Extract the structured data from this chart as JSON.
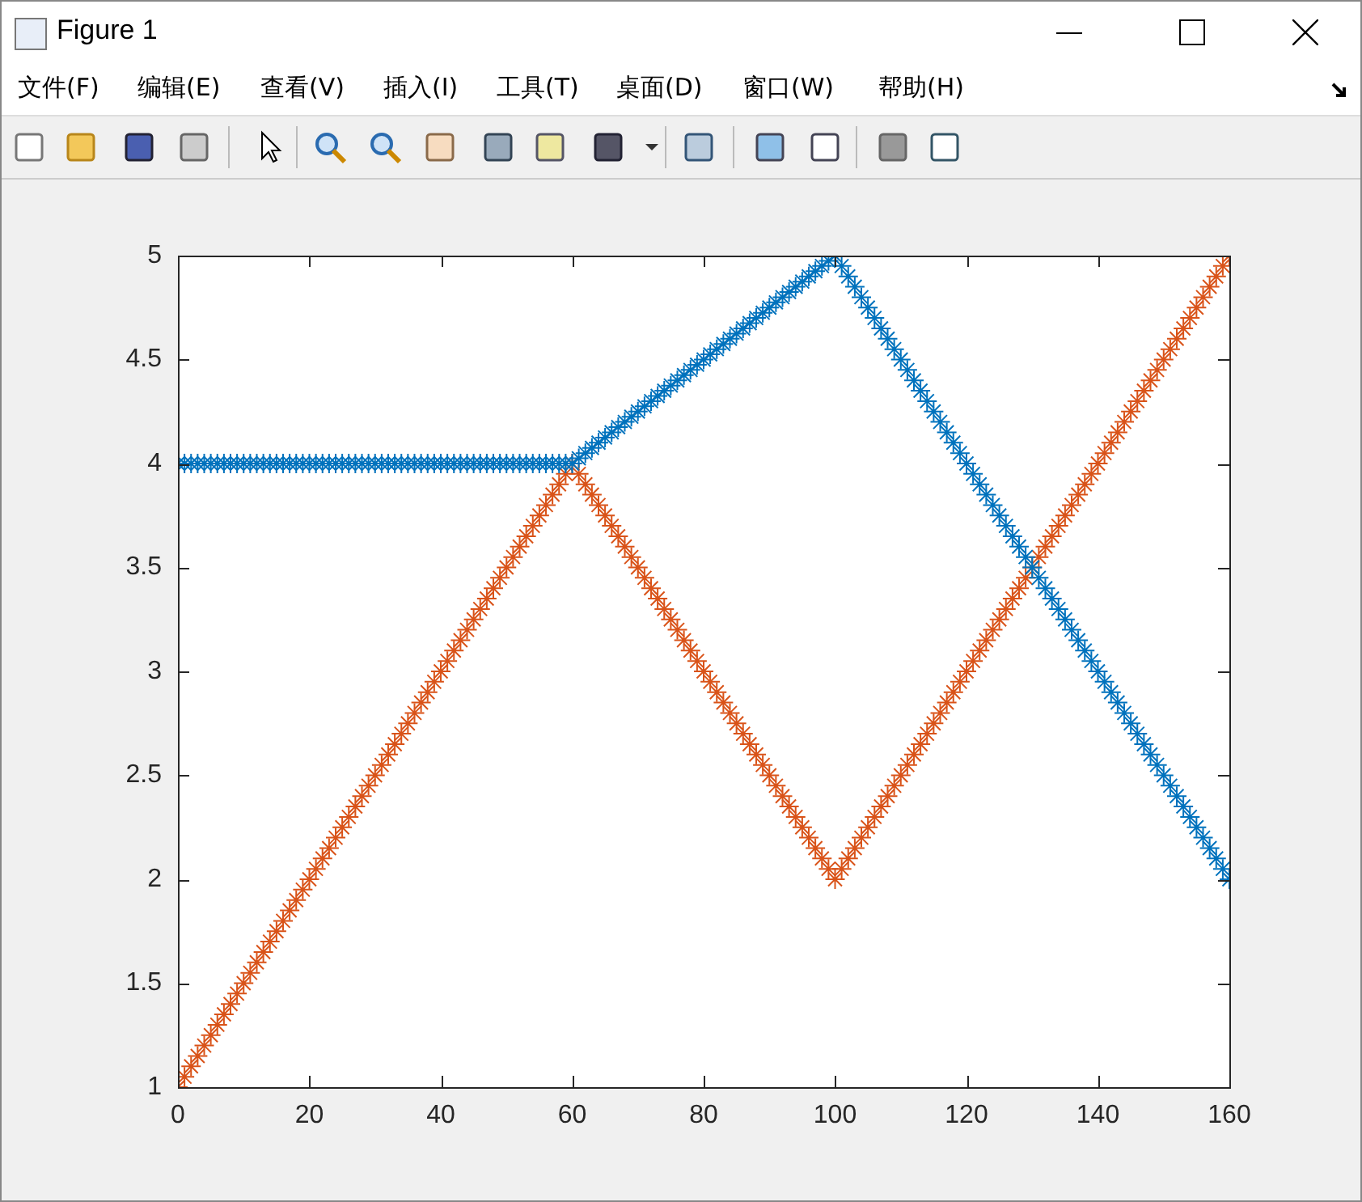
{
  "chart_data": {
    "type": "scatter",
    "annotations": [
      "Figure 1",
      "文件(F)",
      "编辑(E)",
      "查看(V)",
      "插入(I)",
      "工具(T)",
      "桌面(D)",
      "窗口(W)",
      "帮助(H)"
    ],
    "x": [
      0,
      1,
      2,
      3,
      4,
      5,
      6,
      7,
      8,
      9,
      10,
      11,
      12,
      13,
      14,
      15,
      16,
      17,
      18,
      19,
      20,
      21,
      22,
      23,
      24,
      25,
      26,
      27,
      28,
      29,
      30,
      31,
      32,
      33,
      34,
      35,
      36,
      37,
      38,
      39,
      40,
      41,
      42,
      43,
      44,
      45,
      46,
      47,
      48,
      49,
      50,
      51,
      52,
      53,
      54,
      55,
      56,
      57,
      58,
      59,
      60,
      61,
      62,
      63,
      64,
      65,
      66,
      67,
      68,
      69,
      70,
      71,
      72,
      73,
      74,
      75,
      76,
      77,
      78,
      79,
      80,
      81,
      82,
      83,
      84,
      85,
      86,
      87,
      88,
      89,
      90,
      91,
      92,
      93,
      94,
      95,
      96,
      97,
      98,
      99,
      100,
      101,
      102,
      103,
      104,
      105,
      106,
      107,
      108,
      109,
      110,
      111,
      112,
      113,
      114,
      115,
      116,
      117,
      118,
      119,
      120,
      121,
      122,
      123,
      124,
      125,
      126,
      127,
      128,
      129,
      130,
      131,
      132,
      133,
      134,
      135,
      136,
      137,
      138,
      139,
      140,
      141,
      142,
      143,
      144,
      145,
      146,
      147,
      148,
      149,
      150,
      151,
      152,
      153,
      154,
      155,
      156,
      157,
      158,
      159,
      160
    ],
    "series": [
      {
        "color": "#0072bd",
        "values": [
          4,
          4,
          4,
          4,
          4,
          4,
          4,
          4,
          4,
          4,
          4,
          4,
          4,
          4,
          4,
          4,
          4,
          4,
          4,
          4,
          4,
          4,
          4,
          4,
          4,
          4,
          4,
          4,
          4,
          4,
          4,
          4,
          4,
          4,
          4,
          4,
          4,
          4,
          4,
          4,
          4,
          4,
          4,
          4,
          4,
          4,
          4,
          4,
          4,
          4,
          4,
          4,
          4,
          4,
          4,
          4,
          4,
          4,
          4,
          4,
          4,
          4.025,
          4.05,
          4.075,
          4.1,
          4.125,
          4.15,
          4.175,
          4.2,
          4.225,
          4.25,
          4.275,
          4.3,
          4.325,
          4.35,
          4.375,
          4.4,
          4.425,
          4.45,
          4.475,
          4.5,
          4.525,
          4.55,
          4.575,
          4.6,
          4.625,
          4.65,
          4.675,
          4.7,
          4.725,
          4.75,
          4.775,
          4.8,
          4.825,
          4.85,
          4.875,
          4.9,
          4.925,
          4.95,
          4.975,
          5,
          4.95,
          4.9,
          4.85,
          4.8,
          4.75,
          4.7,
          4.65,
          4.6,
          4.55,
          4.5,
          4.45,
          4.4,
          4.35,
          4.3,
          4.25,
          4.2,
          4.15,
          4.1,
          4.05,
          4,
          3.95,
          3.9,
          3.85,
          3.8,
          3.75,
          3.7,
          3.65,
          3.6,
          3.55,
          3.5,
          3.45,
          3.4,
          3.35,
          3.3,
          3.25,
          3.2,
          3.15,
          3.1,
          3.05,
          3,
          2.95,
          2.9,
          2.85,
          2.8,
          2.75,
          2.7,
          2.65,
          2.6,
          2.55,
          2.5,
          2.45,
          2.4,
          2.35,
          2.3,
          2.25,
          2.2,
          2.15,
          2.1,
          2.05,
          2
        ]
      },
      {
        "color": "#d95319",
        "values": [
          1,
          1.05,
          1.1,
          1.15,
          1.2,
          1.25,
          1.3,
          1.35,
          1.4,
          1.45,
          1.5,
          1.55,
          1.6,
          1.65,
          1.7,
          1.75,
          1.8,
          1.85,
          1.9,
          1.95,
          2,
          2.05,
          2.1,
          2.15,
          2.2,
          2.25,
          2.3,
          2.35,
          2.4,
          2.45,
          2.5,
          2.55,
          2.6,
          2.65,
          2.7,
          2.75,
          2.8,
          2.85,
          2.9,
          2.95,
          3,
          3.05,
          3.1,
          3.15,
          3.2,
          3.25,
          3.3,
          3.35,
          3.4,
          3.45,
          3.5,
          3.55,
          3.6,
          3.65,
          3.7,
          3.75,
          3.8,
          3.85,
          3.9,
          3.95,
          4,
          3.95,
          3.9,
          3.85,
          3.8,
          3.75,
          3.7,
          3.65,
          3.6,
          3.55,
          3.5,
          3.45,
          3.4,
          3.35,
          3.3,
          3.25,
          3.2,
          3.15,
          3.1,
          3.05,
          3,
          2.95,
          2.9,
          2.85,
          2.8,
          2.75,
          2.7,
          2.65,
          2.6,
          2.55,
          2.5,
          2.45,
          2.4,
          2.35,
          2.3,
          2.25,
          2.2,
          2.15,
          2.1,
          2.05,
          2,
          2.05,
          2.1,
          2.15,
          2.2,
          2.25,
          2.3,
          2.35,
          2.4,
          2.45,
          2.5,
          2.55,
          2.6,
          2.65,
          2.7,
          2.75,
          2.8,
          2.85,
          2.9,
          2.95,
          3,
          3.05,
          3.1,
          3.15,
          3.2,
          3.25,
          3.3,
          3.35,
          3.4,
          3.45,
          3.5,
          3.55,
          3.6,
          3.65,
          3.7,
          3.75,
          3.8,
          3.85,
          3.9,
          3.95,
          4,
          4.05,
          4.1,
          4.15,
          4.2,
          4.25,
          4.3,
          4.35,
          4.4,
          4.45,
          4.5,
          4.55,
          4.6,
          4.65,
          4.7,
          4.75,
          4.8,
          4.85,
          4.9,
          4.95,
          5
        ]
      }
    ],
    "xlim": [
      0,
      160
    ],
    "xticks": [
      0,
      20,
      40,
      60,
      80,
      100,
      120,
      140,
      160
    ],
    "ylim": [
      1,
      5
    ],
    "yticks": [
      1,
      1.5,
      2,
      2.5,
      3,
      3.5,
      4,
      4.5,
      5
    ],
    "marker": "cross",
    "grid": false,
    "legend": false
  }
}
